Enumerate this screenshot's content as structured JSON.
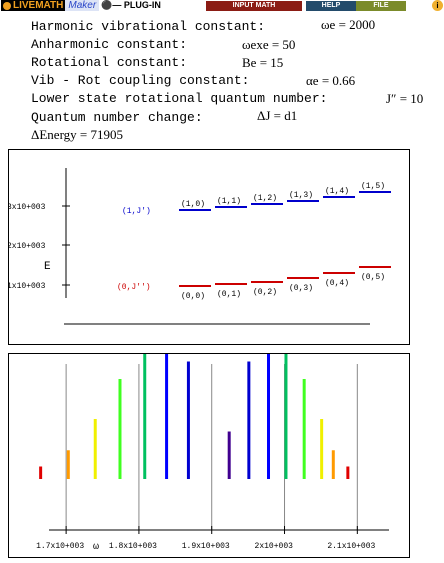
{
  "toolbar": {
    "logo_live": "LIVEMATH",
    "logo_maker": "Maker",
    "logo_plugin": "PLUG-IN",
    "input_math": "INPUT MATH",
    "help": "HELP",
    "file": "FILE",
    "corner_icon": "i"
  },
  "parameters": [
    {
      "label": "Harmonic vibrational constant:",
      "value": "ωe = 2000"
    },
    {
      "label": "Anharmonic constant:",
      "value": "ωexe = 50"
    },
    {
      "label": "Rotational constant:",
      "value": "Be = 15"
    },
    {
      "label": "Vib - Rot coupling constant:",
      "value": "αe = 0.66"
    },
    {
      "label": "Lower state rotational quantum number:",
      "value": "J″ = 10"
    },
    {
      "label": "Quantum number change:",
      "value": "ΔJ = d1"
    }
  ],
  "energy_line": "ΔEnergy = 71905",
  "levels_chart": {
    "y_axis_label": "E",
    "y_ticks": [
      "1x10+003",
      "2x10+003",
      "3x10+003"
    ],
    "upper_state_label": "(1,J')",
    "lower_state_label": "(0,J'')",
    "upper_levels": [
      {
        "label": "(1,0)",
        "color": "#0000cc"
      },
      {
        "label": "(1,1)",
        "color": "#0000cc"
      },
      {
        "label": "(1,2)",
        "color": "#0000cc"
      },
      {
        "label": "(1,3)",
        "color": "#0000cc"
      },
      {
        "label": "(1,4)",
        "color": "#0000cc"
      },
      {
        "label": "(1,5)",
        "color": "#0000cc"
      }
    ],
    "lower_levels": [
      {
        "label": "(0,0)",
        "color": "#cc0000"
      },
      {
        "label": "(0,1)",
        "color": "#cc0000"
      },
      {
        "label": "(0,2)",
        "color": "#cc0000"
      },
      {
        "label": "(0,3)",
        "color": "#cc0000"
      },
      {
        "label": "(0,4)",
        "color": "#cc0000"
      },
      {
        "label": "(0,5)",
        "color": "#cc0000"
      }
    ]
  },
  "chart_data": {
    "type": "bar",
    "title": "",
    "xlabel": "ω",
    "ylabel": "",
    "xlim": [
      1660,
      2160
    ],
    "x_ticks": [
      {
        "value": 1700,
        "label": "1.7x10+003"
      },
      {
        "value": 1800,
        "label": "1.8x10+003"
      },
      {
        "value": 1900,
        "label": "1.9x10+003"
      },
      {
        "value": 2000,
        "label": "2x10+003"
      },
      {
        "value": 2100,
        "label": "2.1x10+003"
      }
    ],
    "lines": [
      {
        "x": 1665,
        "height": 0.1,
        "color": "#e00000"
      },
      {
        "x": 1703,
        "height": 0.23,
        "color": "#ff9a00"
      },
      {
        "x": 1740,
        "height": 0.48,
        "color": "#f0f000"
      },
      {
        "x": 1774,
        "height": 0.8,
        "color": "#40ff20"
      },
      {
        "x": 1808,
        "height": 1.0,
        "color": "#00c060"
      },
      {
        "x": 1838,
        "height": 1.0,
        "color": "#0000ff"
      },
      {
        "x": 1868,
        "height": 0.94,
        "color": "#0000d0"
      },
      {
        "x": 1924,
        "height": 0.38,
        "color": "#400090"
      },
      {
        "x": 1951,
        "height": 0.94,
        "color": "#0000d0"
      },
      {
        "x": 1978,
        "height": 1.0,
        "color": "#0000ff"
      },
      {
        "x": 2002,
        "height": 1.0,
        "color": "#00c060"
      },
      {
        "x": 2027,
        "height": 0.8,
        "color": "#40ff20"
      },
      {
        "x": 2051,
        "height": 0.48,
        "color": "#f0f000"
      },
      {
        "x": 2067,
        "height": 0.23,
        "color": "#ff9a00"
      },
      {
        "x": 2087,
        "height": 0.1,
        "color": "#e00000"
      }
    ]
  }
}
